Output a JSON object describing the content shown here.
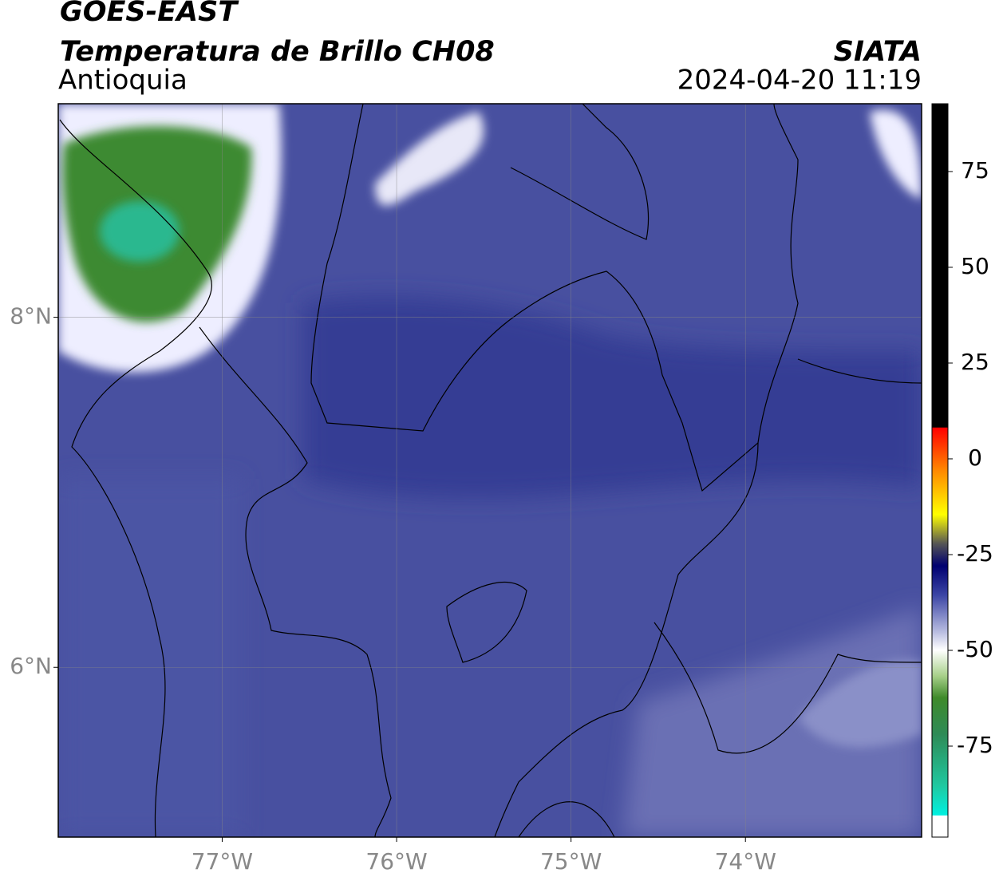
{
  "header": {
    "title": "GOES-EAST",
    "subtitle": "Temperatura de Brillo CH08",
    "region": "Antioquia",
    "source": "SIATA",
    "timestamp": "2024-04-20 11:19"
  },
  "map": {
    "xlim": [
      -77.94,
      -72.99
    ],
    "ylim": [
      5.03,
      9.22
    ],
    "xticks": [
      {
        "value": -77,
        "label": "77°W"
      },
      {
        "value": -76,
        "label": "76°W"
      },
      {
        "value": -75,
        "label": "75°W"
      },
      {
        "value": -74,
        "label": "74°W"
      }
    ],
    "yticks": [
      {
        "value": 8,
        "label": "8°N"
      },
      {
        "value": 6,
        "label": "6°N"
      }
    ]
  },
  "colorbar": {
    "lim": [
      -98.75,
      92.7
    ],
    "ticks": [
      75,
      50,
      25,
      0,
      -25,
      -50,
      -75
    ]
  }
}
